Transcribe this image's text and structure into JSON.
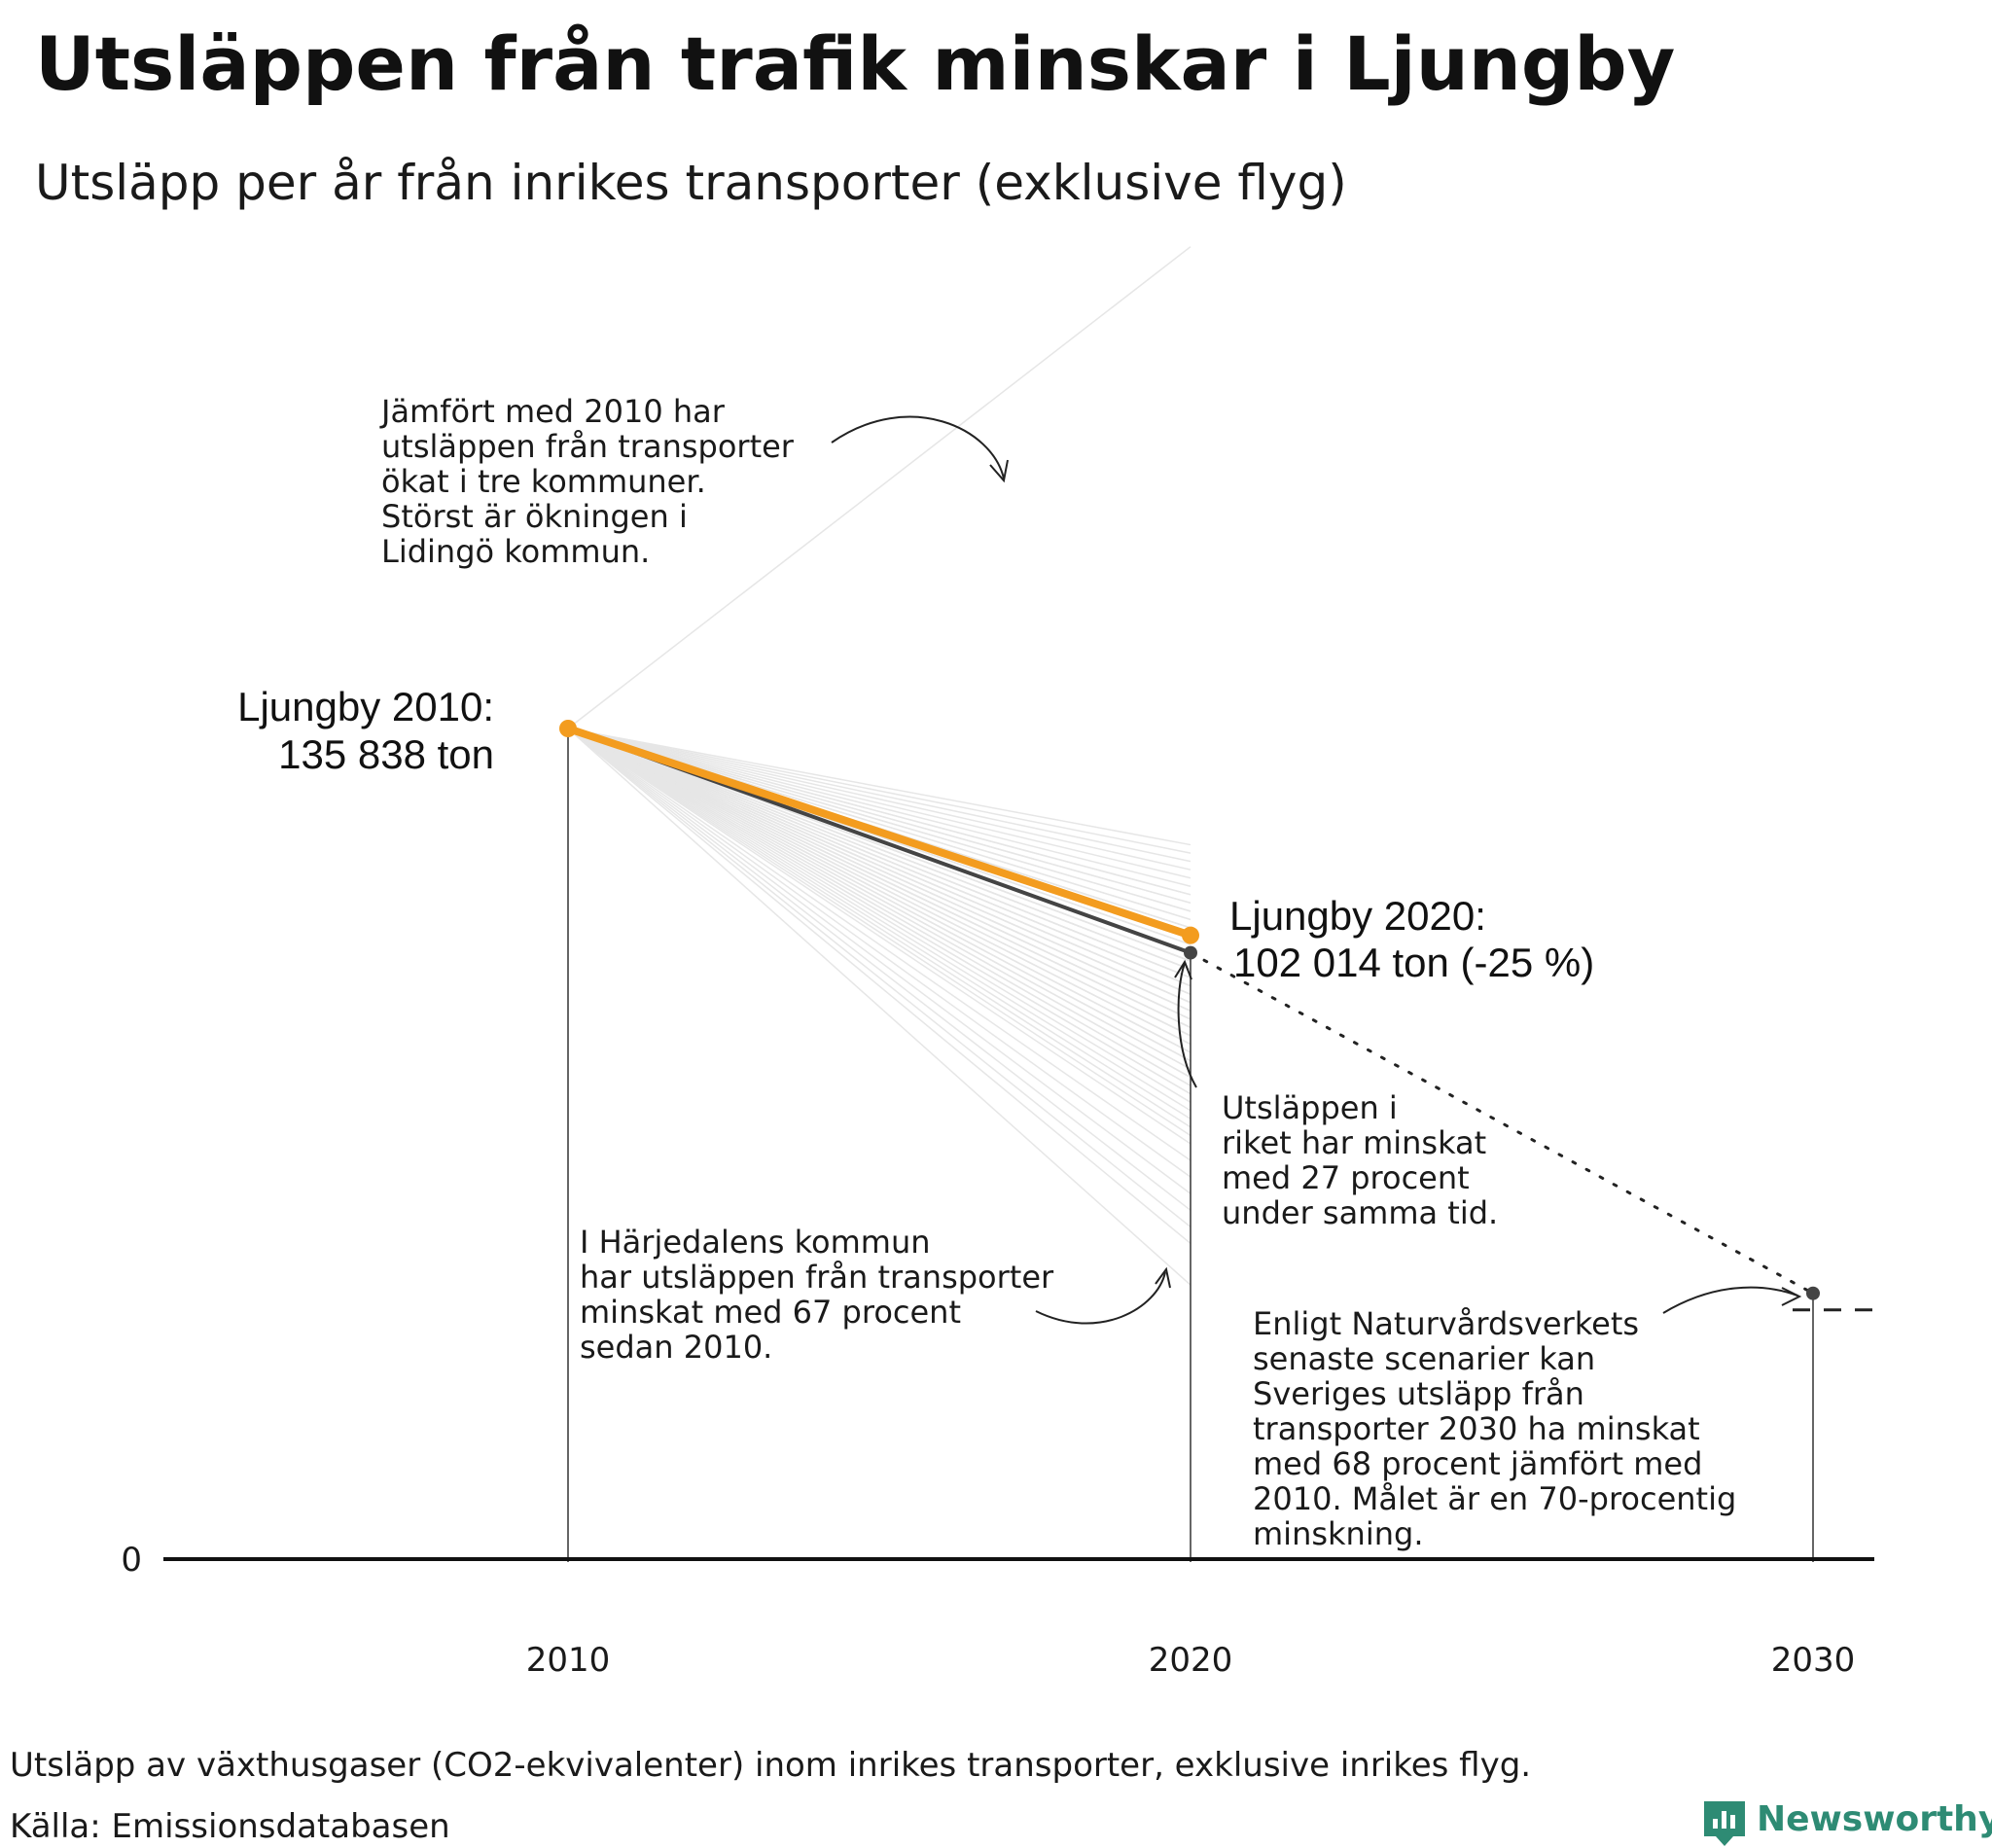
{
  "chart_data": {
    "type": "line",
    "title": "Utsläppen från trafik minskar i Ljungby",
    "subtitle": "Utsläpp per år från inrikes transporter (exklusive flyg)",
    "x_ticks": [
      "2010",
      "2020",
      "2030"
    ],
    "y_ticks": [
      "0"
    ],
    "ylim": [
      0,
      135838
    ],
    "series": [
      {
        "name": "Ljungby",
        "x": [
          2010,
          2020
        ],
        "y": [
          135838,
          102014
        ],
        "color": "#f39c1f"
      },
      {
        "name": "Riket",
        "x": [
          2010,
          2020
        ],
        "y": [
          135838,
          99162
        ],
        "color": "#444444"
      },
      {
        "name": "Scenario 2030",
        "x": [
          2020,
          2030
        ],
        "y": [
          99162,
          43468
        ],
        "style": "dotted",
        "color": "#222222"
      }
    ],
    "target_2030": 40751,
    "municipality_change_2010_2020": [
      1.58,
      0.86,
      0.85,
      0.84,
      0.83,
      0.82,
      0.81,
      0.8,
      0.8,
      0.79,
      0.79,
      0.78,
      0.78,
      0.77,
      0.77,
      0.76,
      0.76,
      0.76,
      0.75,
      0.75,
      0.75,
      0.74,
      0.74,
      0.74,
      0.73,
      0.73,
      0.73,
      0.73,
      0.72,
      0.72,
      0.72,
      0.72,
      0.71,
      0.71,
      0.71,
      0.71,
      0.7,
      0.7,
      0.7,
      0.7,
      0.69,
      0.69,
      0.69,
      0.69,
      0.68,
      0.68,
      0.68,
      0.68,
      0.67,
      0.67,
      0.67,
      0.67,
      0.66,
      0.66,
      0.66,
      0.66,
      0.65,
      0.65,
      0.65,
      0.65,
      0.64,
      0.64,
      0.64,
      0.64,
      0.63,
      0.63,
      0.63,
      0.62,
      0.62,
      0.62,
      0.61,
      0.61,
      0.61,
      0.6,
      0.6,
      0.6,
      0.59,
      0.59,
      0.58,
      0.58,
      0.57,
      0.57,
      0.56,
      0.56,
      0.55,
      0.54,
      0.53,
      0.52,
      0.51,
      0.5,
      0.48,
      0.46,
      0.44,
      0.42,
      0.4,
      0.38,
      0.33
    ],
    "labels": {
      "ljungby2010_line1": "Ljungby 2010:",
      "ljungby2010_line2": "135 838 ton",
      "ljungby2020_line1": "Ljungby 2020:",
      "ljungby2020_line2": "102 014 ton (-25 %)"
    },
    "annotations": {
      "increase": [
        "Jämfört med 2010 har",
        "utsläppen från transporter",
        "ökat i tre kommuner.",
        "Störst är ökningen i",
        "Lidingö kommun."
      ],
      "national": [
        "Utsläppen i",
        "riket har minskat",
        "med 27 procent",
        "under samma tid."
      ],
      "harjedalen": [
        "I Härjedalens kommun",
        "har utsläppen från transporter",
        "minskat med 67 procent",
        "sedan 2010."
      ],
      "scenario": [
        "Enligt Naturvårdsverkets",
        "senaste scenarier kan",
        "Sveriges utsläpp från",
        "transporter 2030 ha minskat",
        "med 68 procent jämfört med",
        "2010. Målet är en 70-procentig",
        "minskning."
      ]
    }
  },
  "footer": {
    "note": "Utsläpp av växthusgaser (CO2-ekvivalenter) inom inrikes transporter, exklusive inrikes flyg.",
    "source": "Källa: Emissionsdatabasen",
    "brand": "Newsworthy"
  }
}
